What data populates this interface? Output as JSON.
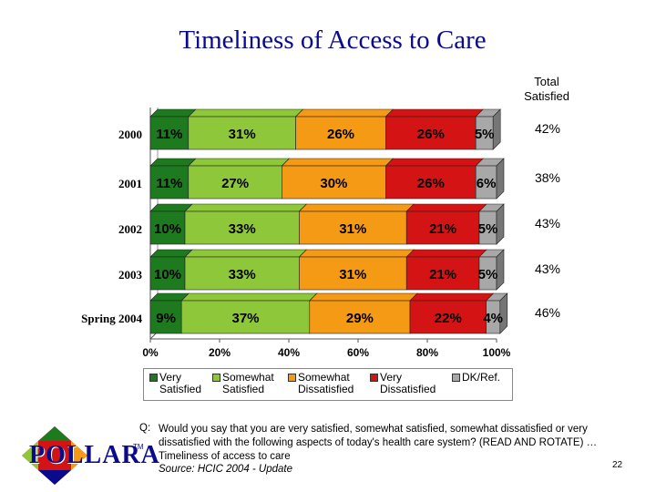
{
  "title": "Timeliness of Access to Care",
  "total_header": "Total\nSatisfied",
  "colors": {
    "very_satisfied": "#1e7a1e",
    "somewhat_satisfied": "#8ec83a",
    "somewhat_dissatisfied": "#f59a14",
    "very_dissatisfied": "#d41414",
    "dk_ref": "#a8a8a8"
  },
  "chart_data": {
    "type": "bar",
    "orientation": "horizontal",
    "stacked": true,
    "categories": [
      "2000",
      "2001",
      "2002",
      "2003",
      "Spring 2004"
    ],
    "series": [
      {
        "name": "Very Satisfied",
        "values": [
          11,
          11,
          10,
          10,
          9
        ],
        "labels": [
          "11%",
          "11%",
          "10%",
          "10%",
          "9%"
        ]
      },
      {
        "name": "Somewhat Satisfied",
        "values": [
          31,
          27,
          33,
          33,
          37
        ],
        "labels": [
          "31%",
          "27%",
          "33%",
          "33%",
          "37%"
        ]
      },
      {
        "name": "Somewhat Dissatisfied",
        "values": [
          26,
          30,
          31,
          31,
          29
        ],
        "labels": [
          "26%",
          "30%",
          "31%",
          "31%",
          "29%"
        ]
      },
      {
        "name": "Very Dissatisfied",
        "values": [
          26,
          26,
          21,
          21,
          22
        ],
        "labels": [
          "26%",
          "26%",
          "21%",
          "21%",
          "22%"
        ]
      },
      {
        "name": "DK/Ref.",
        "values": [
          5,
          6,
          5,
          5,
          4
        ],
        "labels": [
          "5%",
          "6%",
          "5%",
          "5%",
          "4%"
        ]
      }
    ],
    "total_satisfied": [
      "42%",
      "38%",
      "43%",
      "43%",
      "46%"
    ],
    "x_ticks": [
      "0%",
      "20%",
      "40%",
      "60%",
      "80%",
      "100%"
    ],
    "xlim": [
      0,
      100
    ],
    "legend_position": "bottom"
  },
  "legend": [
    {
      "label": "Very\nSatisfied"
    },
    {
      "label": "Somewhat\nSatisfied"
    },
    {
      "label": "Somewhat\nDissatisfied"
    },
    {
      "label": "Very\nDissatisfied"
    },
    {
      "label": "DK/Ref."
    }
  ],
  "logo": {
    "text": "POLLARA",
    "tm": "TM"
  },
  "question": {
    "label": "Q:",
    "text": "Would you say that you are very satisfied, somewhat satisfied, somewhat dissatisfied or very dissatisfied with the following aspects of today's health care system? (READ AND ROTATE) … Timeliness of access to care",
    "source": "Source:  HCIC 2004 - Update"
  },
  "page_number": "22"
}
